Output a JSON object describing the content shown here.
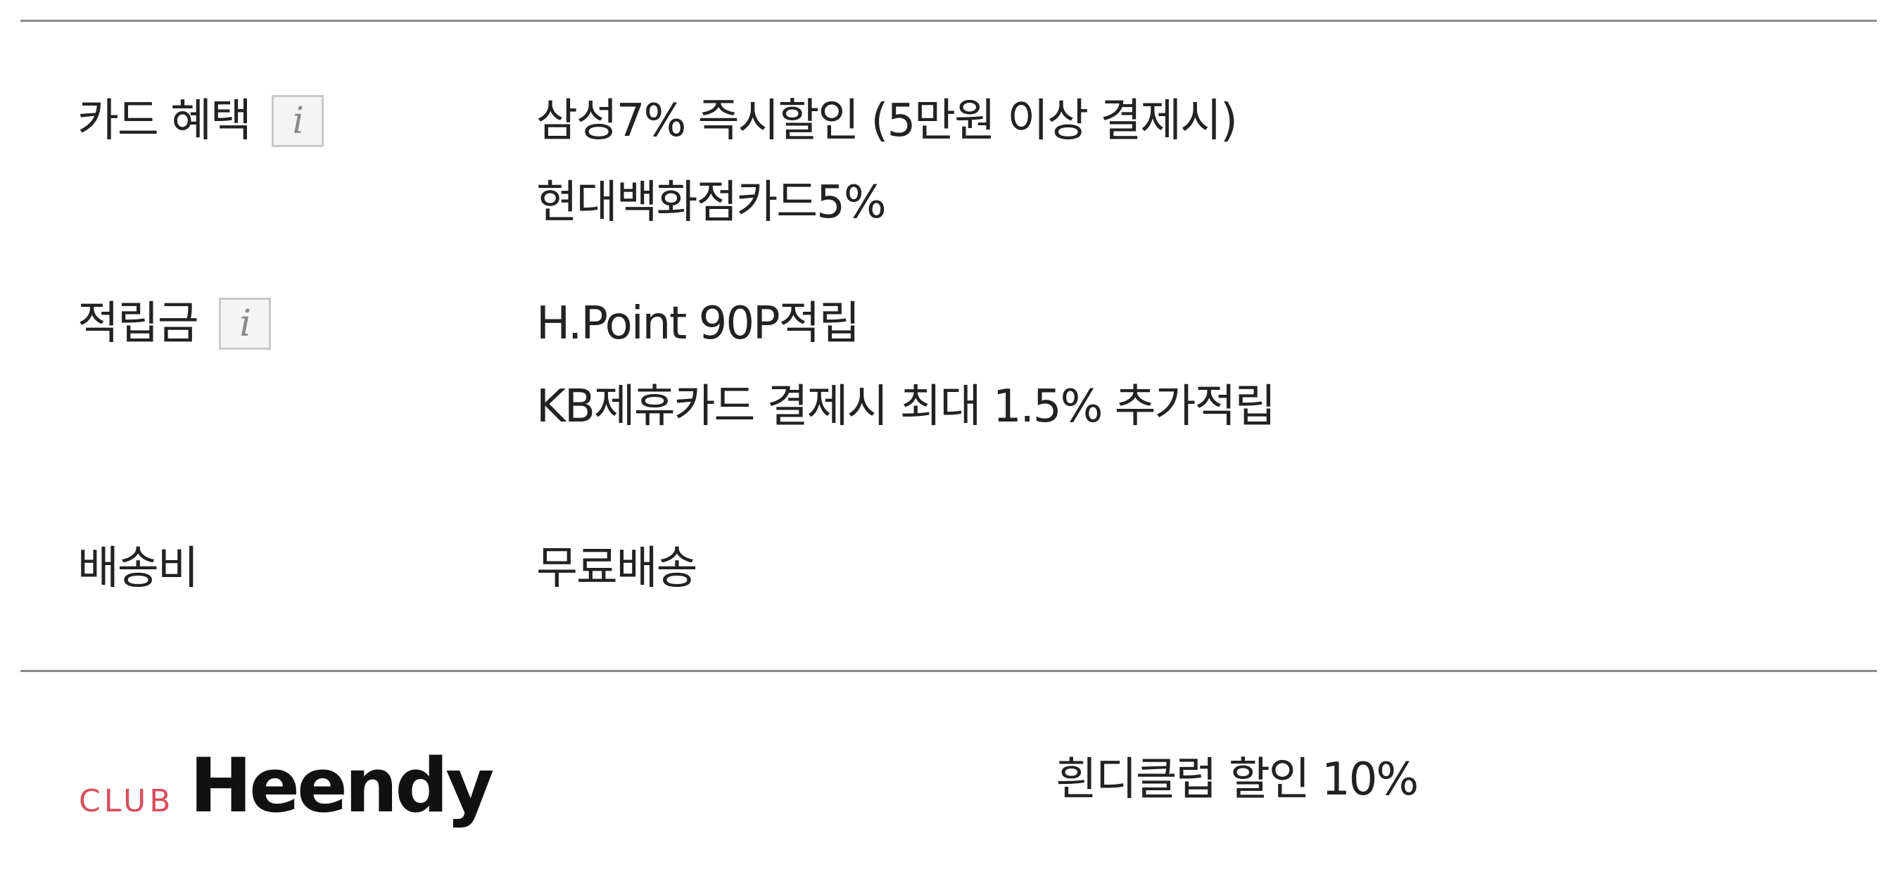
{
  "benefits": {
    "card": {
      "label": "카드 혜택",
      "info_icon": "info-icon",
      "info_glyph": "i",
      "lines": [
        "삼성7% 즉시할인 (5만원 이상 결제시)",
        "현대백화점카드5%"
      ]
    },
    "points": {
      "label": "적립금",
      "info_icon": "info-icon",
      "info_glyph": "i",
      "lines": [
        "H.Point 90P적립",
        "KB제휴카드 결제시 최대 1.5% 추가적립"
      ]
    },
    "shipping": {
      "label": "배송비",
      "value": "무료배송"
    }
  },
  "club": {
    "logo_prefix": "CLUB",
    "logo_name": "Heendy",
    "prefix_color": "#d6505e",
    "discount": "흰디클럽 할인 10%"
  }
}
